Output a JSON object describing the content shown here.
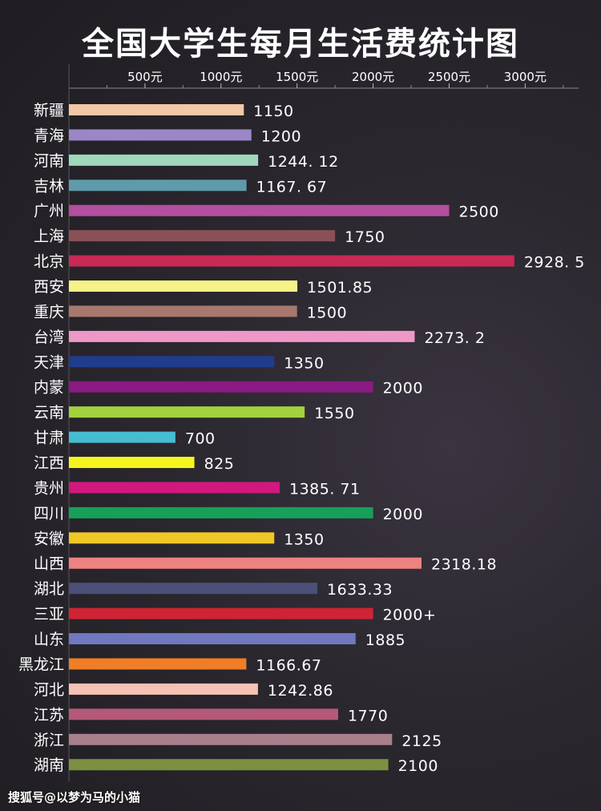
{
  "chart_data": {
    "type": "bar",
    "orientation": "horizontal",
    "title": "全国大学生每月生活费统计图",
    "xlabel": "",
    "ylabel": "",
    "xlim": [
      0,
      3300
    ],
    "ticks": [
      {
        "value": 500,
        "label": "500元"
      },
      {
        "value": 1000,
        "label": "1000元"
      },
      {
        "value": 1500,
        "label": "1500元"
      },
      {
        "value": 2000,
        "label": "2000元"
      },
      {
        "value": 2500,
        "label": "2500元"
      },
      {
        "value": 3000,
        "label": "3000元"
      }
    ],
    "bars": [
      {
        "category": "新疆",
        "value": 1150,
        "label": "1150",
        "color": "#f2c8a6"
      },
      {
        "category": "青海",
        "value": 1200,
        "label": "1200",
        "color": "#9b86c8"
      },
      {
        "category": "河南",
        "value": 1244.12,
        "label": "1244. 12",
        "color": "#9fd8bb"
      },
      {
        "category": "吉林",
        "value": 1167.67,
        "label": "1167. 67",
        "color": "#5f9bab"
      },
      {
        "category": "广州",
        "value": 2500,
        "label": "2500",
        "color": "#b44f9f"
      },
      {
        "category": "上海",
        "value": 1750,
        "label": "1750",
        "color": "#8a5058"
      },
      {
        "category": "北京",
        "value": 2928.5,
        "label": "2928. 5",
        "color": "#c82a55"
      },
      {
        "category": "西安",
        "value": 1501.85,
        "label": "1501.85",
        "color": "#f6f288"
      },
      {
        "category": "重庆",
        "value": 1500,
        "label": "1500",
        "color": "#a8786e"
      },
      {
        "category": "台湾",
        "value": 2273.2,
        "label": "2273. 2",
        "color": "#ee98c8"
      },
      {
        "category": "天津",
        "value": 1350,
        "label": "1350",
        "color": "#1f3d8c"
      },
      {
        "category": "内蒙",
        "value": 2000,
        "label": "2000",
        "color": "#8a1a84"
      },
      {
        "category": "云南",
        "value": 1550,
        "label": "1550",
        "color": "#a2d23e"
      },
      {
        "category": "甘肃",
        "value": 700,
        "label": "700",
        "color": "#46bcd2"
      },
      {
        "category": "江西",
        "value": 825,
        "label": "825",
        "color": "#f6f41c"
      },
      {
        "category": "贵州",
        "value": 1385.71,
        "label": "1385. 71",
        "color": "#d2187e"
      },
      {
        "category": "四川",
        "value": 2000,
        "label": "2000",
        "color": "#16a05a"
      },
      {
        "category": "安徽",
        "value": 1350,
        "label": "1350",
        "color": "#f0c826"
      },
      {
        "category": "山西",
        "value": 2318.18,
        "label": "2318.18",
        "color": "#ee8280"
      },
      {
        "category": "湖北",
        "value": 1633.33,
        "label": "1633.33",
        "color": "#4a5078"
      },
      {
        "category": "三亚",
        "value": 2000,
        "label": "2000+",
        "color": "#d02434"
      },
      {
        "category": "山东",
        "value": 1885,
        "label": "1885",
        "color": "#7078c0"
      },
      {
        "category": "黑龙江",
        "value": 1166.67,
        "label": "1166.67",
        "color": "#f07e26"
      },
      {
        "category": "河北",
        "value": 1242.86,
        "label": "1242.86",
        "color": "#f6c2b6"
      },
      {
        "category": "江苏",
        "value": 1770,
        "label": "1770",
        "color": "#b45a78"
      },
      {
        "category": "浙江",
        "value": 2125,
        "label": "2125",
        "color": "#a8808c"
      },
      {
        "category": "湖南",
        "value": 2100,
        "label": "2100",
        "color": "#7c9040"
      }
    ]
  },
  "watermark": "搜狐号@以梦为马的小猫"
}
